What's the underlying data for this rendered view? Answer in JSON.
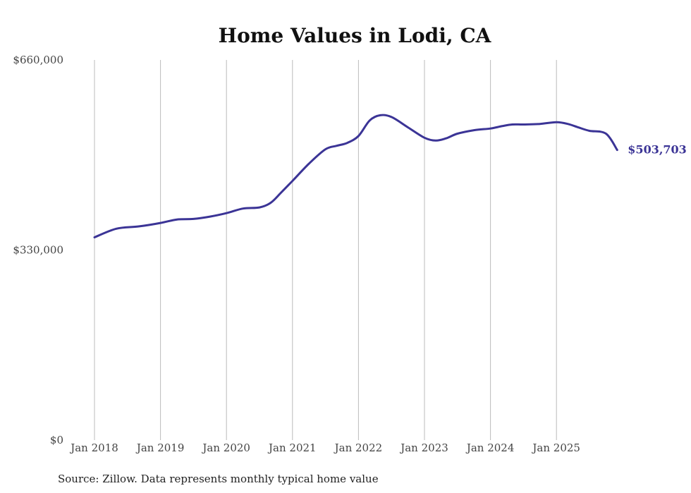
{
  "chart_data": {
    "type": "line",
    "title": "Home Values in Lodi, CA",
    "xlabel": "",
    "ylabel": "",
    "ylim": [
      0,
      660000
    ],
    "y_ticks": [
      {
        "value": 0,
        "label": "$0"
      },
      {
        "value": 330000,
        "label": "$330,000"
      },
      {
        "value": 660000,
        "label": "$660,000"
      }
    ],
    "x_ticks": [
      {
        "value": 2018,
        "label": "Jan 2018"
      },
      {
        "value": 2019,
        "label": "Jan 2019"
      },
      {
        "value": 2020,
        "label": "Jan 2020"
      },
      {
        "value": 2021,
        "label": "Jan 2021"
      },
      {
        "value": 2022,
        "label": "Jan 2022"
      },
      {
        "value": 2023,
        "label": "Jan 2023"
      },
      {
        "value": 2024,
        "label": "Jan 2024"
      },
      {
        "value": 2025,
        "label": "Jan 2025"
      }
    ],
    "xlim": [
      2018,
      2025.92
    ],
    "grid": "vertical",
    "series": [
      {
        "name": "Typical home value",
        "color": "#3b3496",
        "end_label": "$503,703",
        "x": [
          2018.0,
          2018.33,
          2018.67,
          2019.0,
          2019.25,
          2019.5,
          2019.75,
          2020.0,
          2020.25,
          2020.5,
          2020.67,
          2020.83,
          2021.0,
          2021.25,
          2021.5,
          2021.67,
          2021.83,
          2022.0,
          2022.17,
          2022.33,
          2022.5,
          2022.75,
          2023.0,
          2023.17,
          2023.33,
          2023.5,
          2023.75,
          2024.0,
          2024.17,
          2024.33,
          2024.5,
          2024.75,
          2025.0,
          2025.17,
          2025.33,
          2025.5,
          2025.75,
          2025.92
        ],
        "values": [
          352000,
          367000,
          371000,
          377000,
          383000,
          384000,
          388000,
          394000,
          402000,
          404000,
          412000,
          430000,
          450000,
          480000,
          505000,
          511000,
          516000,
          528000,
          555000,
          564000,
          561000,
          543000,
          525000,
          520000,
          524000,
          532000,
          538000,
          541000,
          545000,
          548000,
          548000,
          549000,
          552000,
          549000,
          543000,
          537000,
          532000,
          503703
        ]
      }
    ]
  },
  "footer": {
    "source": "Source: Zillow. Data represents monthly typical home value"
  }
}
